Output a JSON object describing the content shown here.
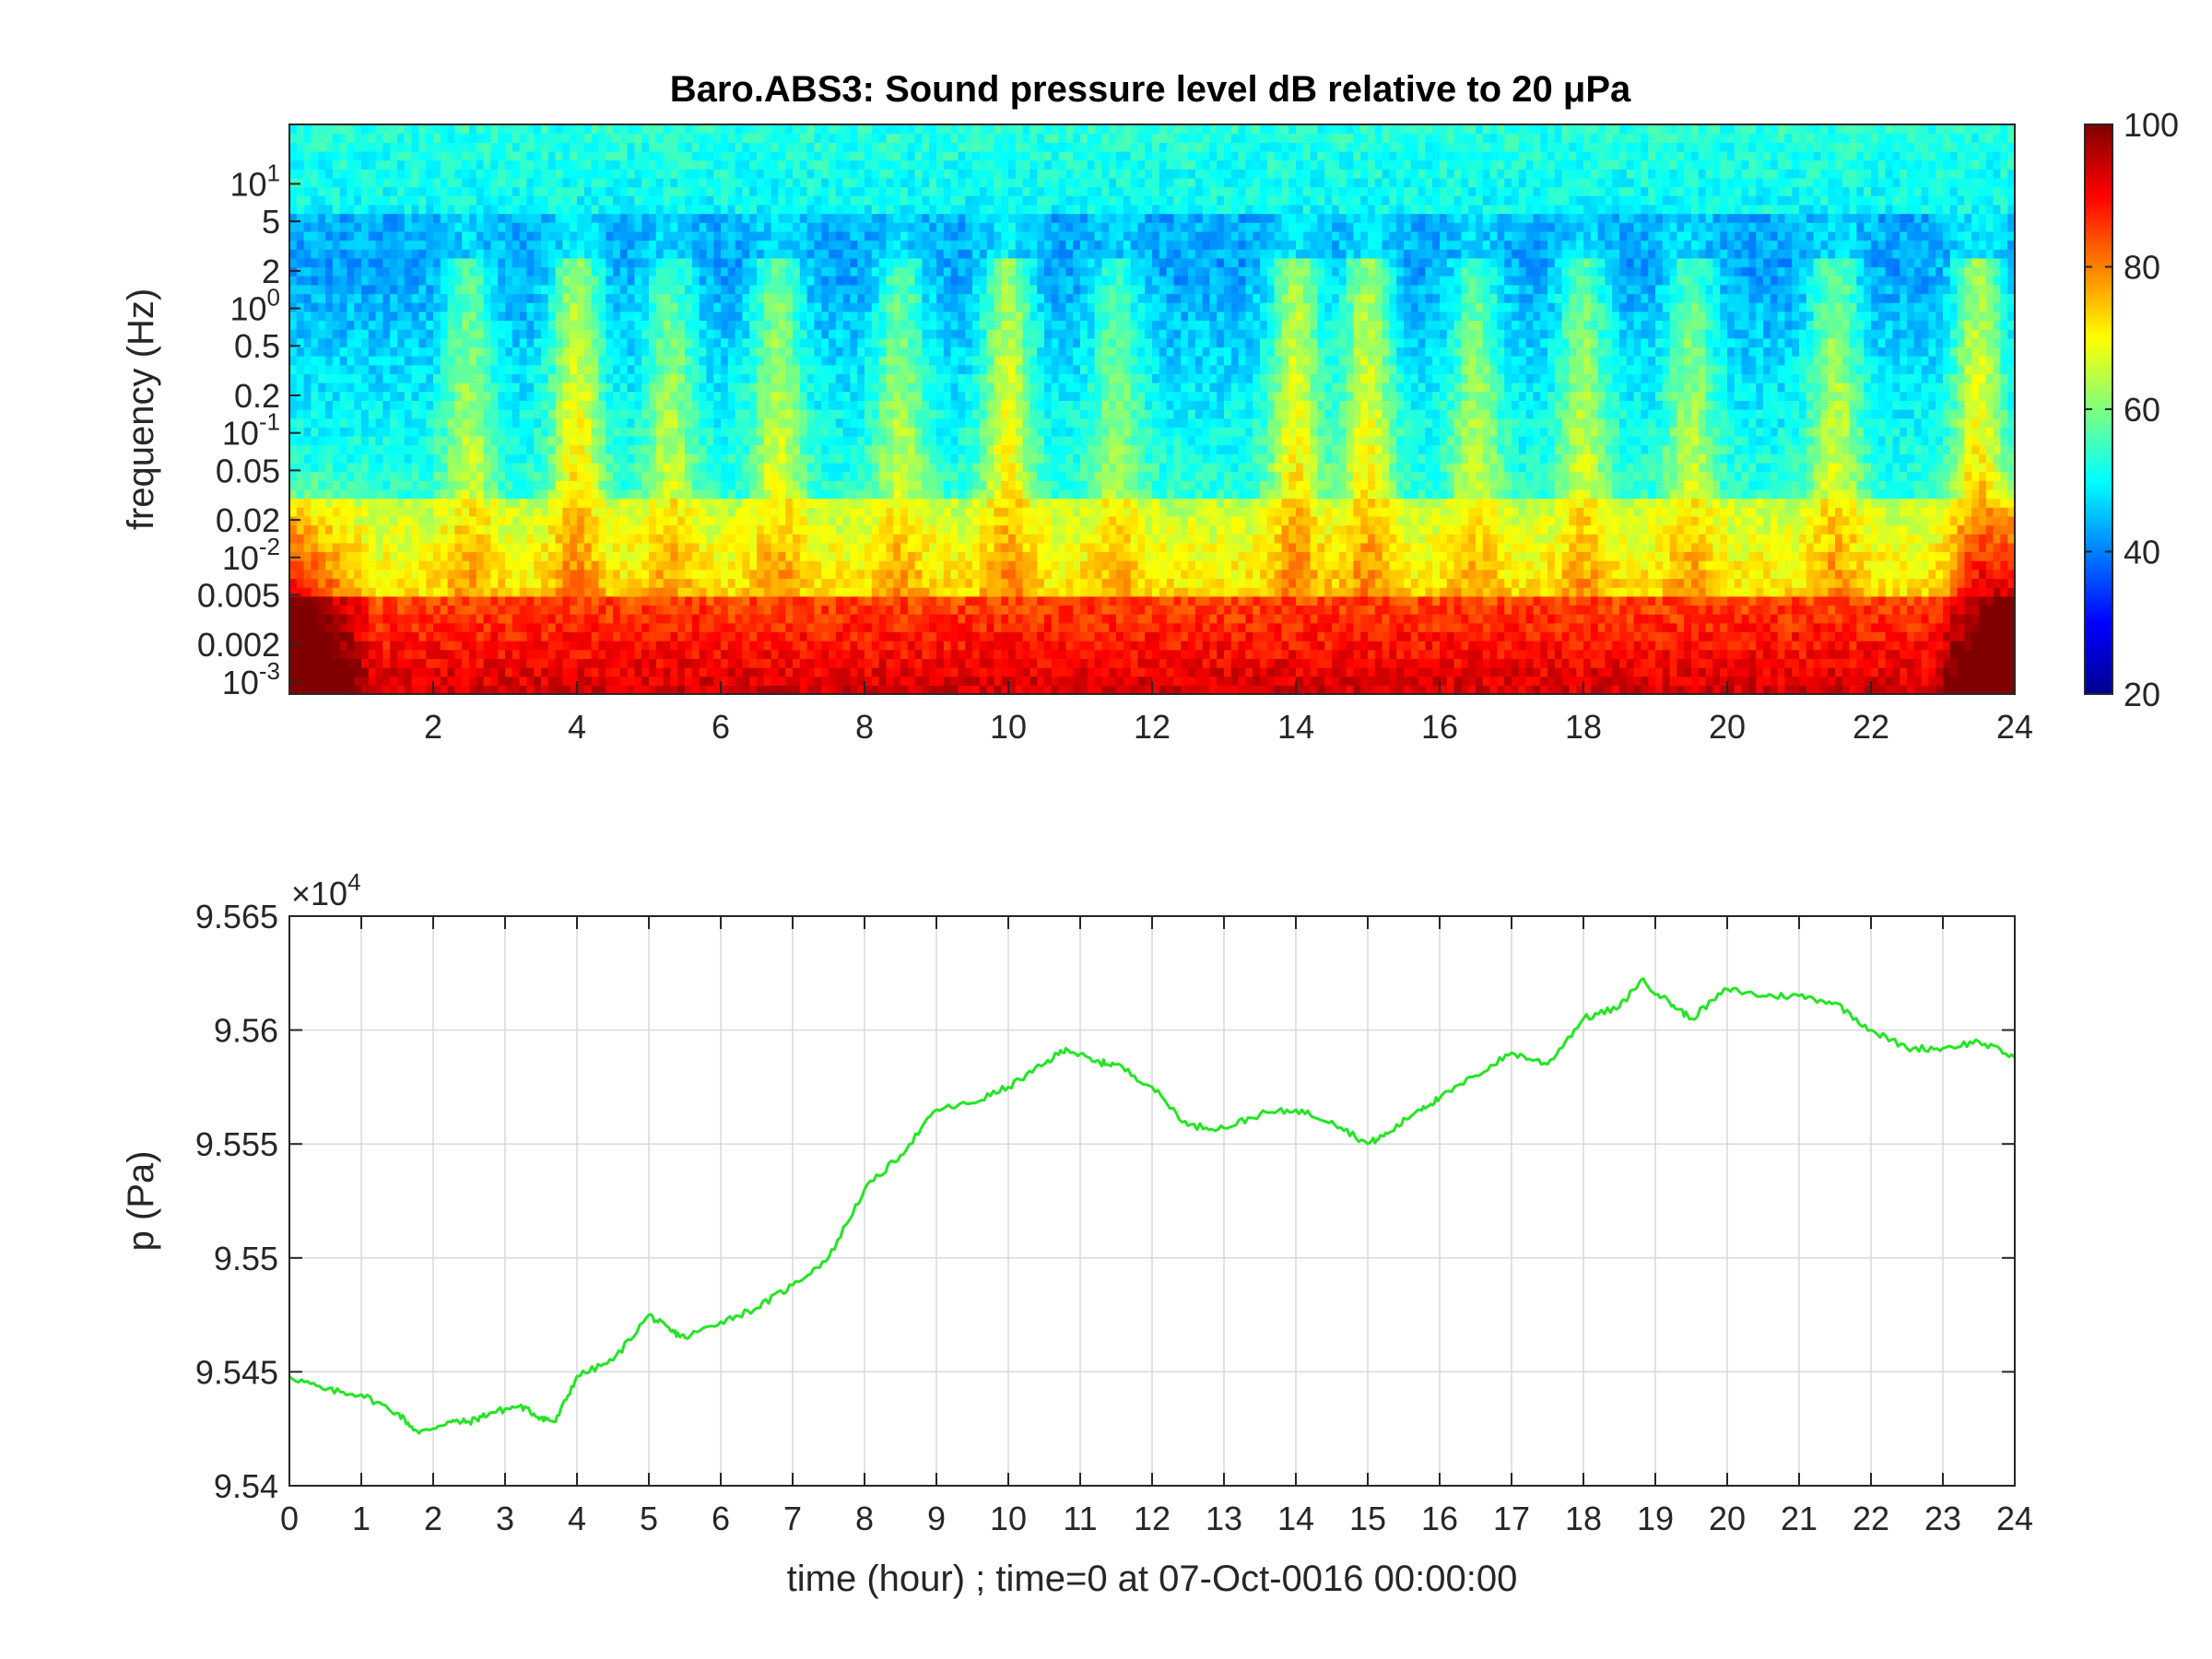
{
  "chart_data": [
    {
      "type": "heatmap",
      "title": "Baro.ABS3: Sound pressure level dB relative to 20 μPa",
      "xlabel": "",
      "ylabel": "frequency (Hz)",
      "xlim": [
        0,
        24
      ],
      "ylim": [
        0.0008,
        30
      ],
      "yscale": "log",
      "x_ticks": [
        2,
        4,
        6,
        8,
        10,
        12,
        14,
        16,
        18,
        20,
        22,
        24
      ],
      "x_tick_labels": [
        "2",
        "4",
        "6",
        "8",
        "10",
        "12",
        "14",
        "16",
        "18",
        "20",
        "22",
        "24"
      ],
      "y_ticks": [
        10,
        5,
        2,
        1,
        0.5,
        0.2,
        0.1,
        0.05,
        0.02,
        0.01,
        0.005,
        0.002,
        0.001
      ],
      "y_tick_labels": [
        {
          "base": "10",
          "exp": "1"
        },
        {
          "base": "5",
          "exp": ""
        },
        {
          "base": "2",
          "exp": ""
        },
        {
          "base": "10",
          "exp": "0"
        },
        {
          "base": "0.5",
          "exp": ""
        },
        {
          "base": "0.2",
          "exp": ""
        },
        {
          "base": "10",
          "exp": "-1"
        },
        {
          "base": "0.05",
          "exp": ""
        },
        {
          "base": "0.02",
          "exp": ""
        },
        {
          "base": "10",
          "exp": "-2"
        },
        {
          "base": "0.005",
          "exp": ""
        },
        {
          "base": "0.002",
          "exp": ""
        },
        {
          "base": "10",
          "exp": "-3"
        }
      ],
      "colorbar": {
        "range": [
          20,
          100
        ],
        "ticks": [
          20,
          40,
          60,
          80,
          100
        ],
        "tick_labels": [
          "20",
          "40",
          "60",
          "80",
          "100"
        ],
        "colormap": "jet"
      },
      "active_hours": [
        {
          "t": 2.5,
          "strength": 0.6
        },
        {
          "t": 4.0,
          "strength": 0.9
        },
        {
          "t": 5.3,
          "strength": 0.6
        },
        {
          "t": 6.8,
          "strength": 0.7
        },
        {
          "t": 8.5,
          "strength": 0.6
        },
        {
          "t": 10.0,
          "strength": 0.85
        },
        {
          "t": 11.5,
          "strength": 0.5
        },
        {
          "t": 14.0,
          "strength": 0.9
        },
        {
          "t": 15.0,
          "strength": 0.85
        },
        {
          "t": 16.5,
          "strength": 0.6
        },
        {
          "t": 18.0,
          "strength": 0.65
        },
        {
          "t": 19.5,
          "strength": 0.6
        },
        {
          "t": 21.5,
          "strength": 0.7
        },
        {
          "t": 23.5,
          "strength": 0.9
        }
      ]
    },
    {
      "type": "line",
      "xlabel": "time (hour) ; time=0 at 07-Oct-0016 00:00:00",
      "ylabel": "p (Pa)",
      "xlim": [
        0,
        24
      ],
      "ylim": [
        95400,
        95650
      ],
      "grid": true,
      "y_exponent_label": {
        "base": "×10",
        "exp": "4"
      },
      "x_ticks": [
        0,
        1,
        2,
        3,
        4,
        5,
        6,
        7,
        8,
        9,
        10,
        11,
        12,
        13,
        14,
        15,
        16,
        17,
        18,
        19,
        20,
        21,
        22,
        23,
        24
      ],
      "x_tick_labels": [
        "0",
        "1",
        "2",
        "3",
        "4",
        "5",
        "6",
        "7",
        "8",
        "9",
        "10",
        "11",
        "12",
        "13",
        "14",
        "15",
        "16",
        "17",
        "18",
        "19",
        "20",
        "21",
        "22",
        "23",
        "24"
      ],
      "y_ticks": [
        95400,
        95450,
        95500,
        95550,
        95600,
        95650
      ],
      "y_tick_labels": [
        "9.54",
        "9.545",
        "9.55",
        "9.555",
        "9.56",
        "9.565"
      ],
      "series": [
        {
          "color": "#22e622",
          "x": [
            0,
            0.5,
            1.0,
            1.5,
            1.8,
            2.2,
            2.5,
            2.8,
            3.2,
            3.5,
            3.7,
            4.0,
            4.5,
            5.0,
            5.3,
            5.5,
            6.0,
            6.5,
            7.0,
            7.5,
            8.0,
            8.5,
            9.0,
            9.5,
            10.0,
            10.5,
            10.8,
            11.2,
            11.5,
            12.0,
            12.5,
            13.0,
            13.5,
            14.0,
            14.5,
            15.0,
            15.3,
            15.7,
            16.0,
            16.5,
            17.0,
            17.5,
            18.0,
            18.5,
            18.8,
            19.2,
            19.5,
            20.0,
            20.5,
            21.0,
            21.5,
            22.0,
            22.5,
            23.0,
            23.5,
            24.0
          ],
          "y": [
            95448,
            95442,
            95440,
            95432,
            95423,
            95428,
            95428,
            95432,
            95435,
            95430,
            95428,
            95448,
            95455,
            95475,
            95468,
            95465,
            95472,
            95478,
            95488,
            95500,
            95530,
            95545,
            95565,
            95568,
            95575,
            95585,
            95592,
            95586,
            95585,
            95575,
            95558,
            95557,
            95563,
            95565,
            95560,
            95550,
            95555,
            95565,
            95570,
            95580,
            95590,
            95585,
            95605,
            95610,
            95622,
            95612,
            95605,
            95618,
            95615,
            95615,
            95612,
            95600,
            95592,
            95592,
            95595,
            95588
          ]
        }
      ]
    }
  ]
}
